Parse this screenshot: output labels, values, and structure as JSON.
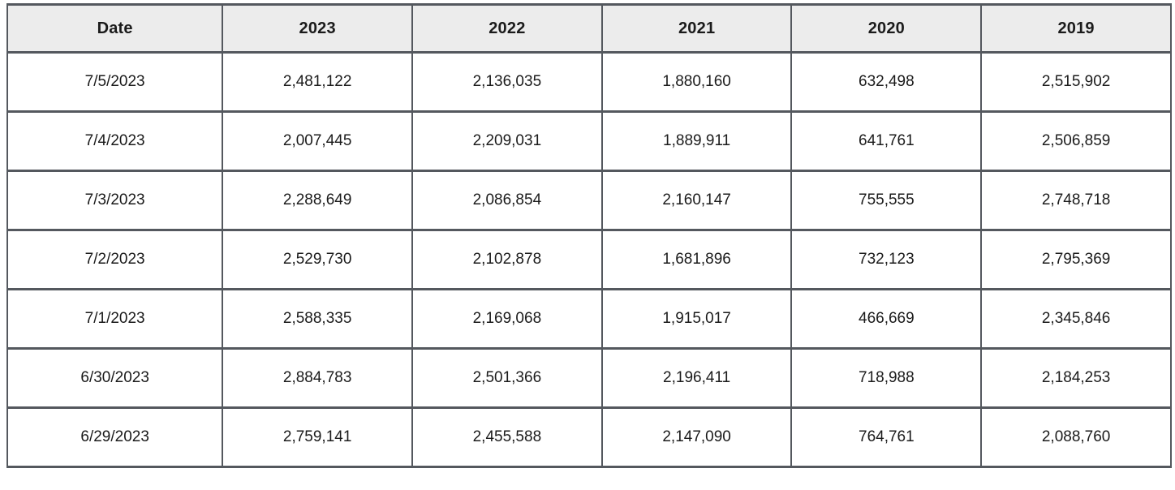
{
  "colors": {
    "border": "#54585e",
    "header_bg": "#ececec",
    "cell_bg": "#ffffff",
    "text": "#1b1b1b"
  },
  "chart_data": {
    "type": "table",
    "title": "",
    "columns": [
      "Date",
      "2023",
      "2022",
      "2021",
      "2020",
      "2019"
    ],
    "rows": [
      [
        "7/5/2023",
        "2,481,122",
        "2,136,035",
        "1,880,160",
        "632,498",
        "2,515,902"
      ],
      [
        "7/4/2023",
        "2,007,445",
        "2,209,031",
        "1,889,911",
        "641,761",
        "2,506,859"
      ],
      [
        "7/3/2023",
        "2,288,649",
        "2,086,854",
        "2,160,147",
        "755,555",
        "2,748,718"
      ],
      [
        "7/2/2023",
        "2,529,730",
        "2,102,878",
        "1,681,896",
        "732,123",
        "2,795,369"
      ],
      [
        "7/1/2023",
        "2,588,335",
        "2,169,068",
        "1,915,017",
        "466,669",
        "2,345,846"
      ],
      [
        "6/30/2023",
        "2,884,783",
        "2,501,366",
        "2,196,411",
        "718,988",
        "2,184,253"
      ],
      [
        "6/29/2023",
        "2,759,141",
        "2,455,588",
        "2,147,090",
        "764,761",
        "2,088,760"
      ]
    ]
  }
}
